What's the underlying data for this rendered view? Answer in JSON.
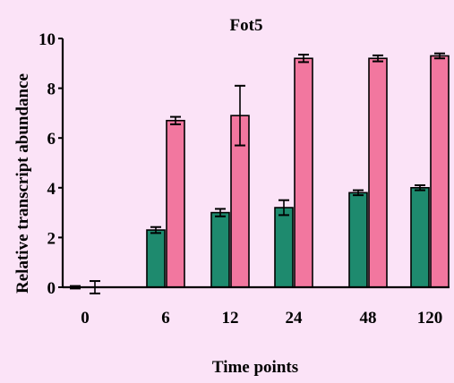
{
  "chart_data": {
    "type": "bar",
    "title": "Fot5",
    "xlabel": "Time points",
    "ylabel": "Relative transcript abundance",
    "categories": [
      "0",
      "6",
      "12",
      "24",
      "48",
      "120"
    ],
    "ylim": [
      0,
      10
    ],
    "yticks": [
      0,
      2,
      4,
      6,
      8,
      10
    ],
    "grid": false,
    "legend": "none",
    "series": [
      {
        "color": "#1e8a6e",
        "values": [
          0.0,
          2.3,
          3.0,
          3.2,
          3.8,
          4.0
        ],
        "errors": [
          0.05,
          0.12,
          0.15,
          0.3,
          0.1,
          0.1
        ]
      },
      {
        "color": "#f2779f",
        "values": [
          0.0,
          6.7,
          6.9,
          9.2,
          9.2,
          9.3
        ],
        "errors": [
          0.25,
          0.15,
          1.2,
          0.15,
          0.12,
          0.1
        ]
      }
    ]
  }
}
